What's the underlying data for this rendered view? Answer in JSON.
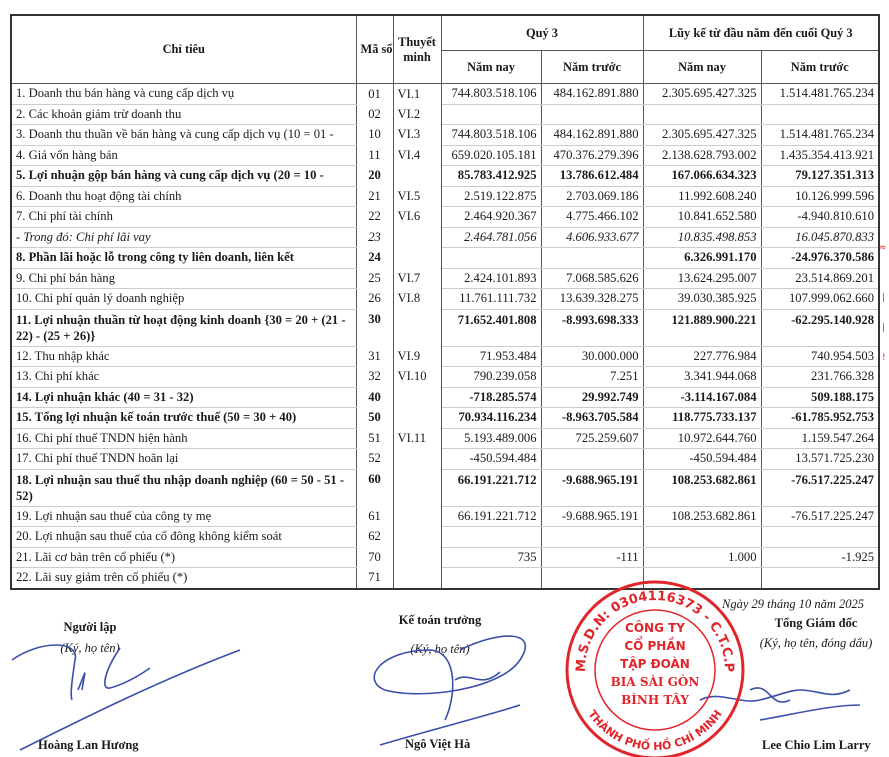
{
  "table": {
    "headers": {
      "indicator": "Chỉ tiêu",
      "code": "Mã số",
      "note": "Thuyết minh",
      "quarter_group": "Quý 3",
      "ytd_group": "Lũy kế từ đầu năm đến cuối Quý 3",
      "this_year": "Năm nay",
      "last_year": "Năm trước"
    },
    "rows": [
      {
        "name": "1. Doanh thu bán hàng và cung cấp dịch vụ",
        "code": "01",
        "note": "VI.1",
        "q_ny": "744.803.518.106",
        "q_nt": "484.162.891.880",
        "y_ny": "2.305.695.427.325",
        "y_nt": "1.514.481.765.234",
        "style": ""
      },
      {
        "name": "2. Các khoản giảm trừ doanh thu",
        "code": "02",
        "note": "VI.2",
        "q_ny": "",
        "q_nt": "",
        "y_ny": "",
        "y_nt": "",
        "style": ""
      },
      {
        "name": "3. Doanh thu thuần về bán hàng và cung cấp dịch vụ (10 = 01 -",
        "code": "10",
        "note": "VI.3",
        "q_ny": "744.803.518.106",
        "q_nt": "484.162.891.880",
        "y_ny": "2.305.695.427.325",
        "y_nt": "1.514.481.765.234",
        "style": ""
      },
      {
        "name": "4. Giá vốn hàng bán",
        "code": "11",
        "note": "VI.4",
        "q_ny": "659.020.105.181",
        "q_nt": "470.376.279.396",
        "y_ny": "2.138.628.793.002",
        "y_nt": "1.435.354.413.921",
        "style": ""
      },
      {
        "name": "5. Lợi nhuận gộp bán hàng và cung cấp dịch vụ (20 = 10 -",
        "code": "20",
        "note": "",
        "q_ny": "85.783.412.925",
        "q_nt": "13.786.612.484",
        "y_ny": "167.066.634.323",
        "y_nt": "79.127.351.313",
        "style": "bold"
      },
      {
        "name": "6. Doanh thu hoạt động tài chính",
        "code": "21",
        "note": "VI.5",
        "q_ny": "2.519.122.875",
        "q_nt": "2.703.069.186",
        "y_ny": "11.992.608.240",
        "y_nt": "10.126.999.596",
        "style": ""
      },
      {
        "name": "7. Chi phí tài chính",
        "code": "22",
        "note": "VI.6",
        "q_ny": "2.464.920.367",
        "q_nt": "4.775.466.102",
        "y_ny": "10.841.652.580",
        "y_nt": "-4.940.810.610",
        "style": ""
      },
      {
        "name": " - Trong đó: Chi phí lãi vay",
        "code": "23",
        "note": "",
        "q_ny": "2.464.781.056",
        "q_nt": "4.606.933.677",
        "y_ny": "10.835.498.853",
        "y_nt": "16.045.870.833",
        "style": "ital"
      },
      {
        "name": "8. Phần lãi hoặc lỗ trong công ty liên doanh, liên kết",
        "code": "24",
        "note": "",
        "q_ny": "",
        "q_nt": "",
        "y_ny": "6.326.991.170",
        "y_nt": "-24.976.370.586",
        "style": "bold"
      },
      {
        "name": "9. Chi phí bán hàng",
        "code": "25",
        "note": "VI.7",
        "q_ny": "2.424.101.893",
        "q_nt": "7.068.585.626",
        "y_ny": "13.624.295.007",
        "y_nt": "23.514.869.201",
        "style": ""
      },
      {
        "name": "10. Chi phí quản lý doanh nghiệp",
        "code": "26",
        "note": "VI.8",
        "q_ny": "11.761.111.732",
        "q_nt": "13.639.328.275",
        "y_ny": "39.030.385.925",
        "y_nt": "107.999.062.660",
        "style": ""
      },
      {
        "name": "11. Lợi nhuận thuần từ hoạt động kinh doanh {30 = 20 + (21 - 22) - (25 + 26)}",
        "code": "30",
        "note": "",
        "q_ny": "71.652.401.808",
        "q_nt": "-8.993.698.333",
        "y_ny": "121.889.900.221",
        "y_nt": "-62.295.140.928",
        "style": "bold tall"
      },
      {
        "name": "12. Thu nhập khác",
        "code": "31",
        "note": "VI.9",
        "q_ny": "71.953.484",
        "q_nt": "30.000.000",
        "y_ny": "227.776.984",
        "y_nt": "740.954.503",
        "style": ""
      },
      {
        "name": "13. Chi phí khác",
        "code": "32",
        "note": "VI.10",
        "q_ny": "790.239.058",
        "q_nt": "7.251",
        "y_ny": "3.341.944.068",
        "y_nt": "231.766.328",
        "style": ""
      },
      {
        "name": "14. Lợi nhuận khác (40 = 31 - 32)",
        "code": "40",
        "note": "",
        "q_ny": "-718.285.574",
        "q_nt": "29.992.749",
        "y_ny": "-3.114.167.084",
        "y_nt": "509.188.175",
        "style": "bold"
      },
      {
        "name": "15. Tổng lợi nhuận kế toán trước thuế (50 = 30 + 40)",
        "code": "50",
        "note": "",
        "q_ny": "70.934.116.234",
        "q_nt": "-8.963.705.584",
        "y_ny": "118.775.733.137",
        "y_nt": "-61.785.952.753",
        "style": "bold"
      },
      {
        "name": "16. Chi phí thuế TNDN hiện hành",
        "code": "51",
        "note": "VI.11",
        "q_ny": "5.193.489.006",
        "q_nt": "725.259.607",
        "y_ny": "10.972.644.760",
        "y_nt": "1.159.547.264",
        "style": ""
      },
      {
        "name": "17. Chi phí thuế TNDN hoãn lại",
        "code": "52",
        "note": "",
        "q_ny": "-450.594.484",
        "q_nt": "",
        "y_ny": "-450.594.484",
        "y_nt": "13.571.725.230",
        "style": ""
      },
      {
        "name": "18. Lợi nhuận sau thuế thu nhập doanh nghiệp (60 = 50 - 51 - 52)",
        "code": "60",
        "note": "",
        "q_ny": "66.191.221.712",
        "q_nt": "-9.688.965.191",
        "y_ny": "108.253.682.861",
        "y_nt": "-76.517.225.247",
        "style": "bold tall"
      },
      {
        "name": "19. Lợi nhuận sau thuế của công ty mẹ",
        "code": "61",
        "note": "",
        "q_ny": "66.191.221.712",
        "q_nt": "-9.688.965.191",
        "y_ny": "108.253.682.861",
        "y_nt": "-76.517.225.247",
        "style": ""
      },
      {
        "name": "20. Lợi nhuận sau thuế của cổ đông không kiểm soát",
        "code": "62",
        "note": "",
        "q_ny": "",
        "q_nt": "",
        "y_ny": "",
        "y_nt": "",
        "style": ""
      },
      {
        "name": "21. Lãi cơ bản trên cổ phiếu (*)",
        "code": "70",
        "note": "",
        "q_ny": "735",
        "q_nt": "-111",
        "y_ny": "1.000",
        "y_nt": "-1.925",
        "style": ""
      },
      {
        "name": "22. Lãi suy giảm trên cổ phiếu (*)",
        "code": "71",
        "note": "",
        "q_ny": "",
        "q_nt": "",
        "y_ny": "",
        "y_nt": "",
        "style": ""
      }
    ]
  },
  "signatures": {
    "date": "Ngày 29 tháng 10 năm 2025",
    "preparer": {
      "title": "Người lập",
      "sub": "(Ký, họ tên)",
      "name": "Hoàng Lan Hương"
    },
    "chief_accountant": {
      "title": "Kế toán trưởng",
      "sub": "(Ký, họ tên)",
      "name": "Ngô Việt Hà"
    },
    "director": {
      "title": "Tổng Giám đốc",
      "sub": "(Ký, họ tên, đóng dấu)",
      "name": "Lee Chio Lim Larry"
    }
  },
  "stamp": {
    "ring_text": "M.S.D.N: 0304116373 - C.T.C.P",
    "ring_bottom": "THÀNH PHỐ HỒ CHÍ MINH",
    "center_lines": [
      "CÔNG TY",
      "CỔ PHẦN",
      "TẬP ĐOÀN",
      "BIA SÀI GÒN",
      "BÌNH TÂY"
    ],
    "color": "#e0262b"
  },
  "colors": {
    "ink": "#3a4fa8",
    "stamp": "#e0262b"
  }
}
